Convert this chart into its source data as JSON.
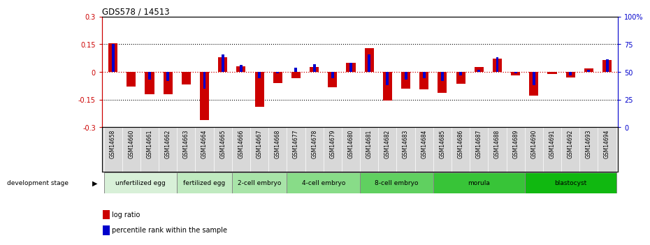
{
  "title": "GDS578 / 14513",
  "samples": [
    "GSM14658",
    "GSM14660",
    "GSM14661",
    "GSM14662",
    "GSM14663",
    "GSM14664",
    "GSM14665",
    "GSM14666",
    "GSM14667",
    "GSM14668",
    "GSM14677",
    "GSM14678",
    "GSM14679",
    "GSM14680",
    "GSM14681",
    "GSM14682",
    "GSM14683",
    "GSM14684",
    "GSM14685",
    "GSM14686",
    "GSM14687",
    "GSM14688",
    "GSM14689",
    "GSM14690",
    "GSM14691",
    "GSM14692",
    "GSM14693",
    "GSM14694"
  ],
  "log_ratio": [
    0.155,
    -0.08,
    -0.12,
    -0.12,
    -0.07,
    -0.26,
    0.08,
    0.03,
    -0.19,
    -0.06,
    -0.035,
    0.025,
    -0.085,
    0.05,
    0.13,
    -0.155,
    -0.09,
    -0.095,
    -0.115,
    -0.065,
    0.025,
    0.07,
    -0.02,
    -0.13,
    -0.01,
    -0.03,
    0.02,
    0.065
  ],
  "percentile_rank_raw": [
    75,
    50,
    43,
    42,
    50,
    35,
    66,
    56,
    44,
    49,
    54,
    57,
    44,
    58,
    66,
    38,
    43,
    44,
    42,
    47,
    52,
    63,
    49,
    38,
    50,
    47,
    52,
    61
  ],
  "stages": [
    {
      "name": "unfertilized egg",
      "start": 0,
      "end": 4
    },
    {
      "name": "fertilized egg",
      "start": 4,
      "end": 7
    },
    {
      "name": "2-cell embryo",
      "start": 7,
      "end": 10
    },
    {
      "name": "4-cell embryo",
      "start": 10,
      "end": 14
    },
    {
      "name": "8-cell embryo",
      "start": 14,
      "end": 18
    },
    {
      "name": "morula",
      "start": 18,
      "end": 23
    },
    {
      "name": "blastocyst",
      "start": 23,
      "end": 28
    }
  ],
  "stage_colors": [
    "#d8f0d8",
    "#c0eac0",
    "#a8e4a8",
    "#88dc88",
    "#60d060",
    "#38c438",
    "#10b810"
  ],
  "ylim": [
    -0.3,
    0.3
  ],
  "yticks_left_vals": [
    -0.3,
    -0.15,
    0.0,
    0.15,
    0.3
  ],
  "yticks_left_labels": [
    "-0.3",
    "-0.15",
    "0",
    "0.15",
    "0.3"
  ],
  "yticks_right_labels": [
    "0",
    "25",
    "50",
    "75",
    "100%"
  ],
  "red_color": "#cc0000",
  "blue_color": "#0000cc",
  "bg_color": "#ffffff",
  "tick_label_bg": "#d8d8d8",
  "red_bar_width": 0.5,
  "blue_bar_width": 0.15
}
